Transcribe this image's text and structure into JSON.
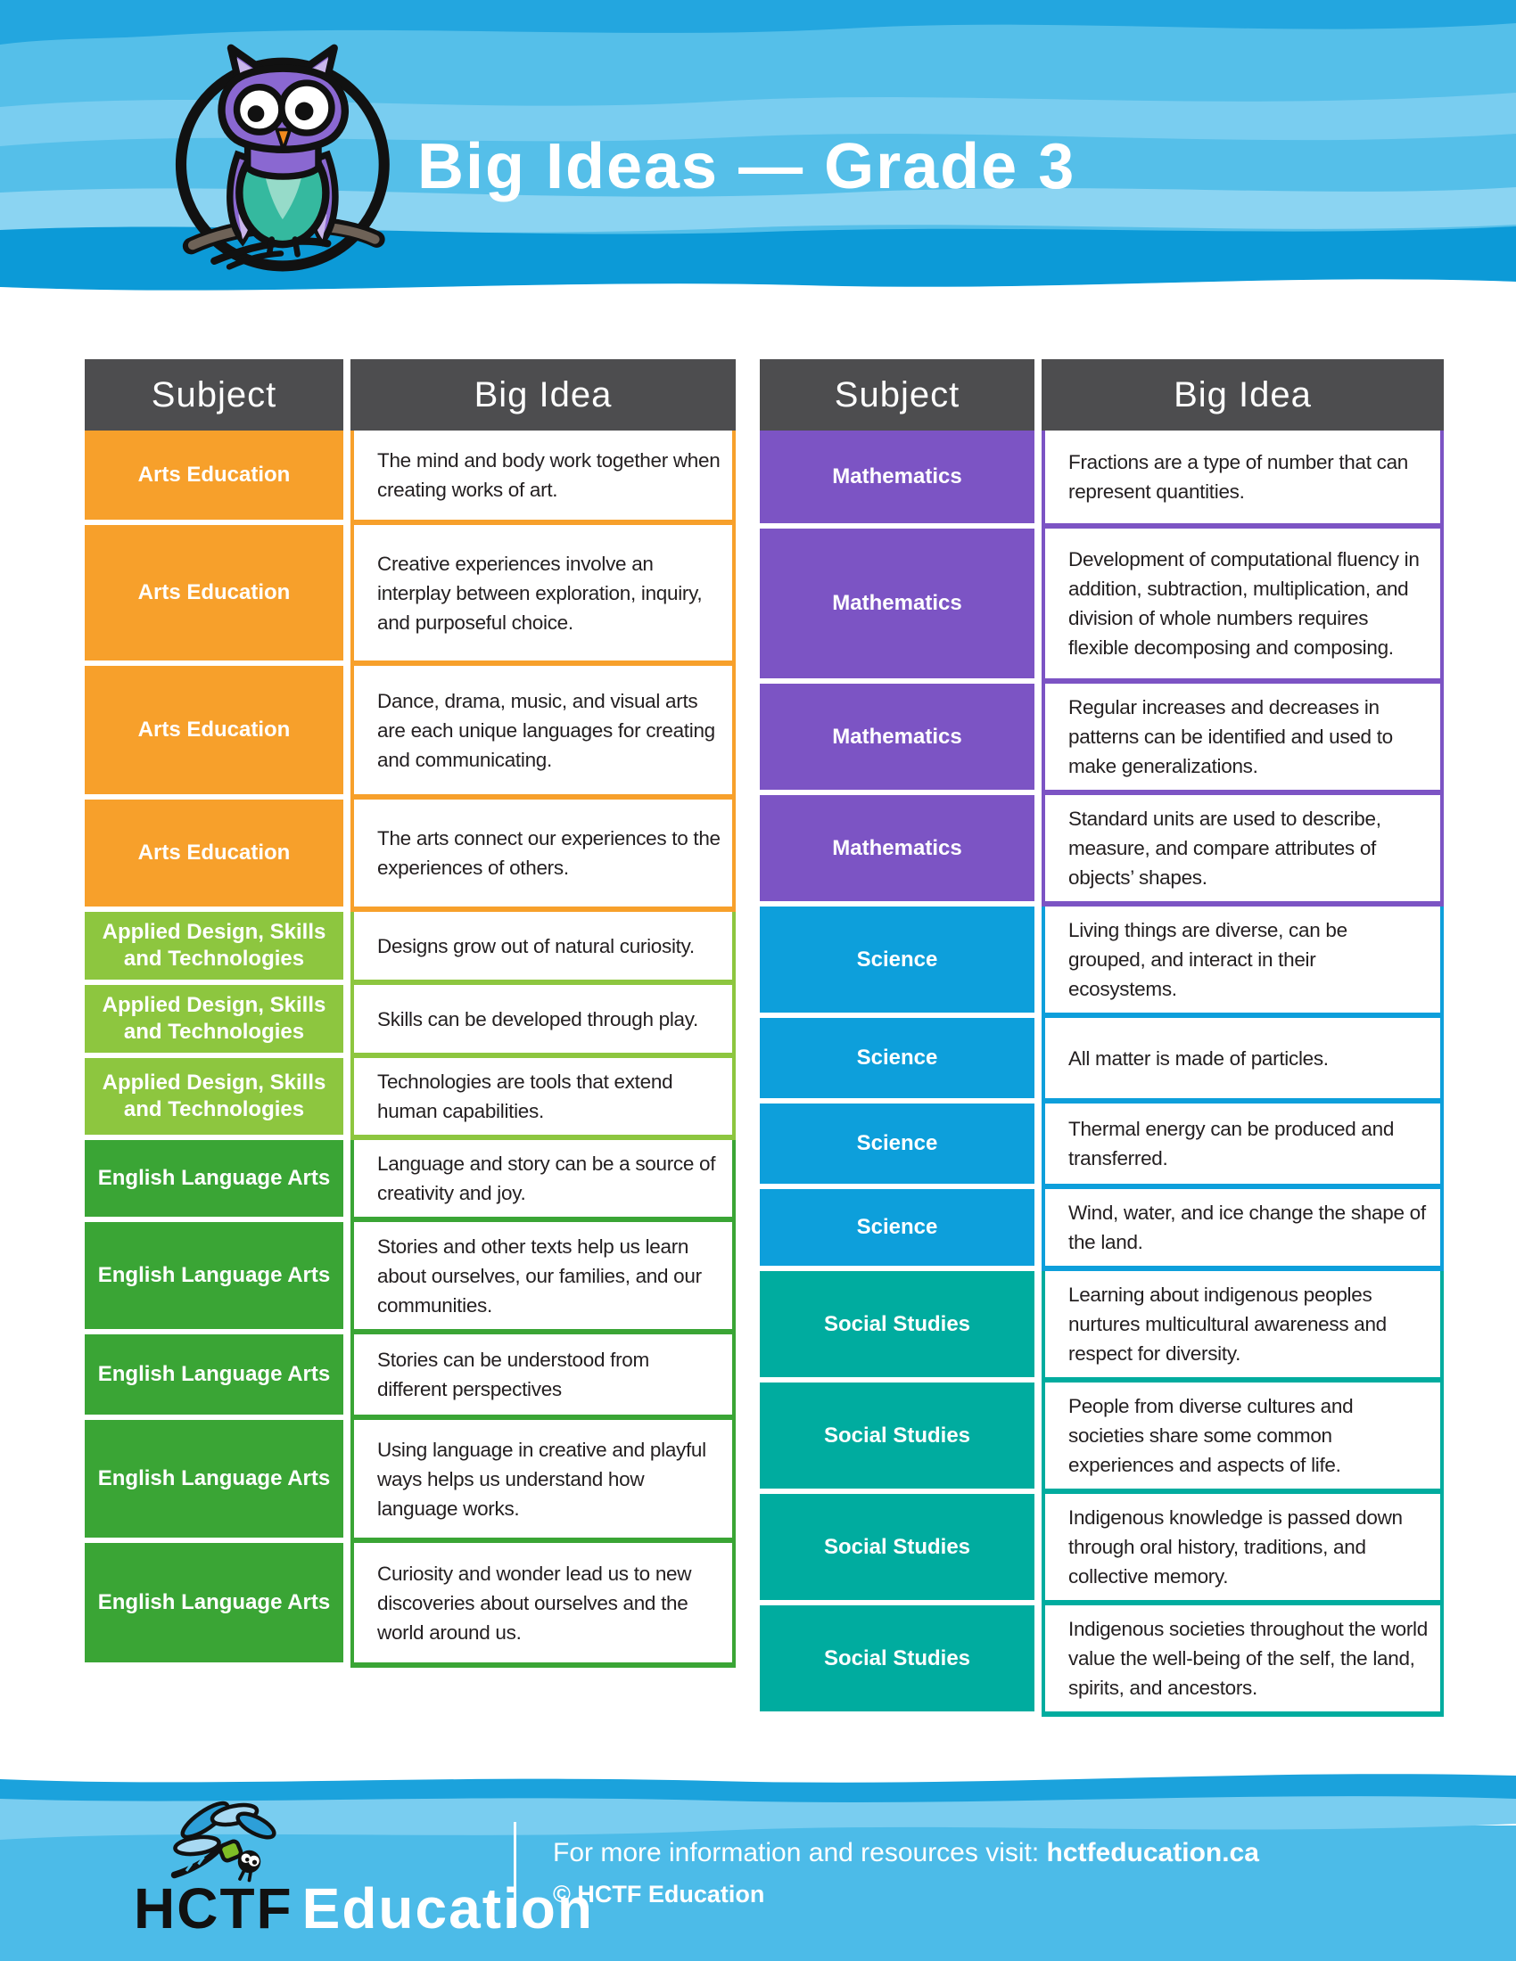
{
  "header": {
    "title": "Big Ideas — Grade 3"
  },
  "colors": {
    "arts": "#F7A02B",
    "adst": "#8DC63F",
    "ela": "#3AA535",
    "math": "#7C54C4",
    "science": "#0D9FDB",
    "social": "#00AC9F",
    "header_cell": "#4D4D4F",
    "sky_blue": "#55BFE9",
    "deep_blue": "#0C9AD7",
    "light_blue": "#79CDF0",
    "band_blue": "#21A5DE"
  },
  "tables": {
    "columns": {
      "subject": "Subject",
      "big_idea": "Big Idea"
    },
    "left": {
      "rows": [
        {
          "section": "arts",
          "subject": "Arts Education",
          "idea": "The mind and body work together when creating works of art."
        },
        {
          "section": "arts",
          "subject": "Arts Education",
          "idea": "Creative experiences involve an interplay between exploration, inquiry, and purposeful choice."
        },
        {
          "section": "arts",
          "subject": "Arts Education",
          "idea": "Dance, drama, music, and visual arts are each unique languages for creating and communicating."
        },
        {
          "section": "arts",
          "subject": "Arts Education",
          "idea": "The arts connect our experiences to the experiences of others."
        },
        {
          "section": "adst",
          "subject": "Applied Design, Skills and Technologies",
          "idea": "Designs grow out of natural curiosity."
        },
        {
          "section": "adst",
          "subject": "Applied Design, Skills and Technologies",
          "idea": "Skills can be developed through play."
        },
        {
          "section": "adst",
          "subject": "Applied Design, Skills and Technologies",
          "idea": "Technologies are tools that extend human capabilities."
        },
        {
          "section": "ela",
          "subject": "English Language Arts",
          "idea": "Language and story can be a source of creativity and joy."
        },
        {
          "section": "ela",
          "subject": "English Language Arts",
          "idea": "Stories and other texts help us learn about ourselves, our families, and our communities."
        },
        {
          "section": "ela",
          "subject": "English Language Arts",
          "idea": "Stories can be understood from different perspectives"
        },
        {
          "section": "ela",
          "subject": "English Language Arts",
          "idea": "Using language in creative and playful ways helps us understand how language works."
        },
        {
          "section": "ela",
          "subject": "English Language Arts",
          "idea": "Curiosity and wonder lead us to new discoveries about ourselves and the world around us."
        }
      ]
    },
    "right": {
      "rows": [
        {
          "section": "math",
          "subject": "Mathematics",
          "idea": "Fractions are a type of number that can represent quantities."
        },
        {
          "section": "math",
          "subject": "Mathematics",
          "idea": "Development of computational fluency in addition, subtraction, multiplication, and division of whole numbers requires flexible decomposing and composing."
        },
        {
          "section": "math",
          "subject": "Mathematics",
          "idea": "Regular increases and decreases in patterns can be identified and used to make generalizations."
        },
        {
          "section": "math",
          "subject": "Mathematics",
          "idea": "Standard units are used to describe, measure, and compare attributes of objects’ shapes."
        },
        {
          "section": "science",
          "subject": "Science",
          "idea": "Living things are diverse, can be grouped, and interact in their ecosystems."
        },
        {
          "section": "science",
          "subject": "Science",
          "idea": "All matter is made of particles."
        },
        {
          "section": "science",
          "subject": "Science",
          "idea": "Thermal energy can be produced and transferred."
        },
        {
          "section": "science",
          "subject": "Science",
          "idea": "Wind, water, and ice change the shape of the land."
        },
        {
          "section": "social",
          "subject": "Social Studies",
          "idea": "Learning about indigenous peoples nurtures multicultural awareness and respect for diversity."
        },
        {
          "section": "social",
          "subject": "Social Studies",
          "idea": "People from diverse cultures and societies share some common experiences and aspects of life."
        },
        {
          "section": "social",
          "subject": "Social Studies",
          "idea": "Indigenous knowledge is passed down through oral history, traditions, and collective memory."
        },
        {
          "section": "social",
          "subject": "Social Studies",
          "idea": "Indigenous societies throughout the world value the well-being of the self, the land, spirits, and ancestors."
        }
      ]
    }
  },
  "footer": {
    "brand_hctf": "HCTF",
    "brand_education": "Education",
    "info_prefix": "For more information and resources visit: ",
    "info_link": "hctfeducation.ca",
    "copyright": "© HCTF Education"
  }
}
